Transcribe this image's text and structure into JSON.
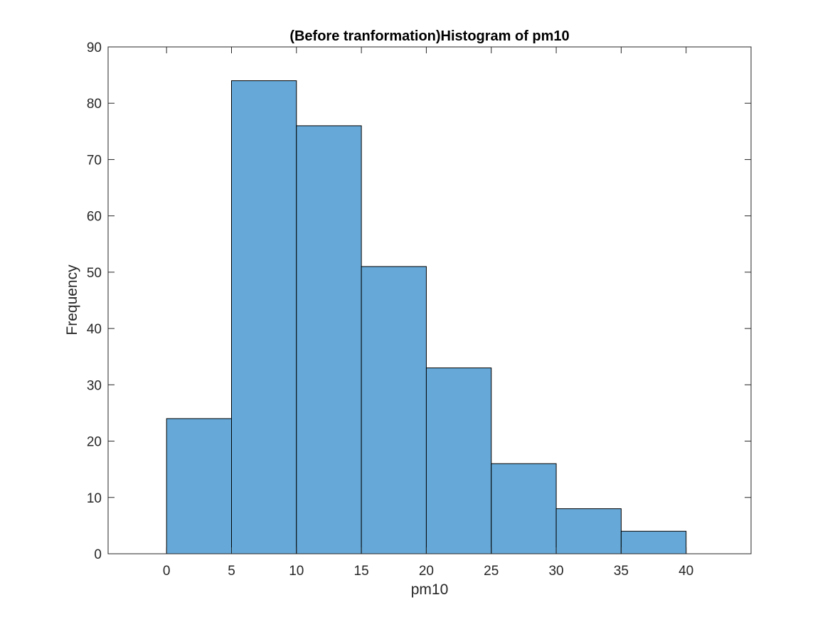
{
  "chart_data": {
    "type": "bar",
    "title": "(Before tranformation)Histogram of pm10",
    "xlabel": "pm10",
    "ylabel": "Frequency",
    "bin_edges": [
      0,
      5,
      10,
      15,
      20,
      25,
      30,
      35,
      40
    ],
    "values": [
      24,
      84,
      76,
      51,
      33,
      16,
      8,
      4
    ],
    "xlim": [
      -4.5,
      45
    ],
    "ylim": [
      0,
      90
    ],
    "xticks": [
      0,
      5,
      10,
      15,
      20,
      25,
      30,
      35,
      40
    ],
    "yticks": [
      0,
      10,
      20,
      30,
      40,
      50,
      60,
      70,
      80,
      90
    ],
    "bar_color": "#66a9d8",
    "edge_color": "#000000",
    "grid": false
  }
}
